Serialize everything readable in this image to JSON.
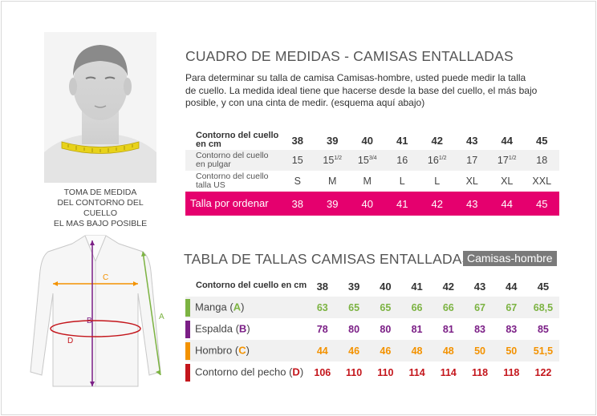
{
  "head_caption": [
    "TOMA DE MEDIDA",
    "DEL CONTORNO DEL CUELLO",
    "EL MAS BAJO POSIBLE"
  ],
  "section1": {
    "title": "CUADRO DE MEDIDAS - CAMISAS ENTALLADAS",
    "intro": "Para determinar su talla de camisa Camisas-hombre, usted puede medir la talla de cuello. La medida ideal tiene que hacerse desde la base del cuello, el más bajo posible, y con una cinta de medir. (esquema aquí abajo)",
    "header_label": "Contorno del cuello en cm",
    "sizes": [
      "38",
      "39",
      "40",
      "41",
      "42",
      "43",
      "44",
      "45"
    ],
    "inch_label": "Contorno del cuello en pulgar",
    "inches": [
      {
        "whole": "15",
        "frac": ""
      },
      {
        "whole": "15",
        "frac": "1/2"
      },
      {
        "whole": "15",
        "frac": "3/4"
      },
      {
        "whole": "16",
        "frac": ""
      },
      {
        "whole": "16",
        "frac": "1/2"
      },
      {
        "whole": "17",
        "frac": ""
      },
      {
        "whole": "17",
        "frac": "1/2"
      },
      {
        "whole": "18",
        "frac": ""
      }
    ],
    "us_label": "Contorno del cuello talla US",
    "us": [
      "S",
      "M",
      "M",
      "L",
      "L",
      "XL",
      "XL",
      "XXL"
    ],
    "order_label": "Talla por ordenar",
    "order": [
      "38",
      "39",
      "40",
      "41",
      "42",
      "43",
      "44",
      "45"
    ]
  },
  "section2": {
    "title": "TABLA DE TALLAS CAMISAS ENTALLADAS",
    "badge": "Camisas-hombre",
    "header_label": "Contorno del cuello en cm",
    "sizes": [
      "38",
      "39",
      "40",
      "41",
      "42",
      "43",
      "44",
      "45"
    ],
    "rows": [
      {
        "label": "Manga (",
        "letter": "A",
        "close": ")",
        "color": "#7cb342",
        "values": [
          "63",
          "65",
          "65",
          "66",
          "66",
          "67",
          "67",
          "68,5"
        ]
      },
      {
        "label": "Espalda (",
        "letter": "B",
        "close": ")",
        "color": "#7b1f86",
        "values": [
          "78",
          "80",
          "80",
          "81",
          "81",
          "83",
          "83",
          "85"
        ]
      },
      {
        "label": "Hombro (",
        "letter": "C",
        "close": ")",
        "color": "#f39200",
        "values": [
          "44",
          "46",
          "46",
          "48",
          "48",
          "50",
          "50",
          "51,5"
        ]
      },
      {
        "label": "Contorno del pecho (",
        "letter": "D",
        "close": ")",
        "color": "#c4161c",
        "values": [
          "106",
          "110",
          "110",
          "114",
          "114",
          "118",
          "118",
          "122"
        ]
      }
    ]
  },
  "shirt_labels": {
    "a": "A",
    "b": "B",
    "c": "C",
    "d": "D"
  },
  "colors": {
    "pink": "#e5006e",
    "grey_row": "#f1f1f1",
    "badge": "#7a7a7a",
    "tape": "#e8d21a"
  }
}
